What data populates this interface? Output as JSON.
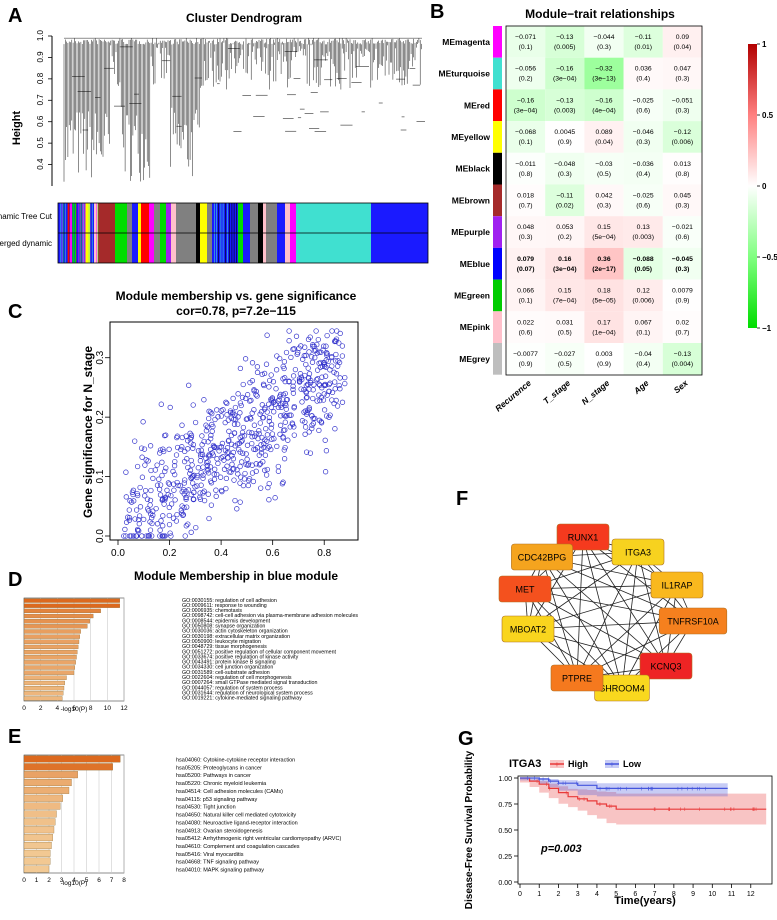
{
  "panels": {
    "A": "A",
    "B": "B",
    "C": "C",
    "D": "D",
    "E": "E",
    "F": "F",
    "G": "G"
  },
  "dendrogram": {
    "title": "Cluster Dendrogram",
    "ylabel": "Height",
    "yticks": [
      "0.4",
      "0.5",
      "0.6",
      "0.7",
      "0.8",
      "0.9",
      "1.0"
    ],
    "row1": "Dynamic Tree Cut",
    "row2": "Merged dynamic",
    "colors": [
      "#1a1aff",
      "#ff00ff",
      "#ffff00",
      "#00dd00",
      "#ff0000",
      "#a52a2a",
      "#000000",
      "#40e0d0",
      "#808080",
      "#ffc0cb",
      "#a020f0"
    ]
  },
  "heatmap": {
    "title": "Module−trait relationships",
    "traits": [
      "Recurence",
      "T_stage",
      "N_stage",
      "Age",
      "Sex"
    ],
    "modules": [
      "MEmagenta",
      "MEturquoise",
      "MEred",
      "MEyellow",
      "MEblack",
      "MEbrown",
      "MEpurple",
      "MEblue",
      "MEgreen",
      "MEpink",
      "MEgrey"
    ],
    "module_colors": [
      "#ff00ff",
      "#40e0d0",
      "#ff0000",
      "#ffff00",
      "#000000",
      "#a52a2a",
      "#a020f0",
      "#0000ff",
      "#00cd00",
      "#ffc0cb",
      "#bebebe"
    ],
    "cor": [
      [
        -0.071,
        -0.13,
        -0.044,
        -0.11,
        0.09
      ],
      [
        -0.056,
        -0.16,
        -0.32,
        0.036,
        0.047
      ],
      [
        -0.16,
        -0.13,
        -0.16,
        -0.025,
        -0.051
      ],
      [
        -0.068,
        0.0045,
        0.089,
        -0.046,
        -0.12
      ],
      [
        -0.011,
        -0.048,
        -0.03,
        -0.036,
        0.013
      ],
      [
        0.018,
        -0.11,
        0.042,
        -0.025,
        0.045
      ],
      [
        0.048,
        0.053,
        0.15,
        0.13,
        -0.021
      ],
      [
        0.079,
        0.16,
        0.36,
        -0.088,
        -0.045
      ],
      [
        0.066,
        0.15,
        0.18,
        0.12,
        0.0079
      ],
      [
        0.022,
        0.031,
        0.17,
        0.067,
        0.02
      ],
      [
        -0.0077,
        -0.027,
        0.003,
        -0.04,
        -0.13
      ]
    ],
    "labels": [
      [
        [
          "−0.071",
          "(0.1)"
        ],
        [
          "−0.13",
          "(0.005)"
        ],
        [
          "−0.044",
          "(0.3)"
        ],
        [
          "−0.11",
          "(0.01)"
        ],
        [
          "0.09",
          "(0.04)"
        ]
      ],
      [
        [
          "−0.056",
          "(0.2)"
        ],
        [
          "−0.16",
          "(3e−04)"
        ],
        [
          "−0.32",
          "(3e−13)"
        ],
        [
          "0.036",
          "(0.4)"
        ],
        [
          "0.047",
          "(0.3)"
        ]
      ],
      [
        [
          "−0.16",
          "(3e−04)"
        ],
        [
          "−0.13",
          "(0.003)"
        ],
        [
          "−0.16",
          "(4e−04)"
        ],
        [
          "−0.025",
          "(0.6)"
        ],
        [
          "−0.051",
          "(0.3)"
        ]
      ],
      [
        [
          "−0.068",
          "(0.1)"
        ],
        [
          "0.0045",
          "(0.9)"
        ],
        [
          "0.089",
          "(0.04)"
        ],
        [
          "−0.046",
          "(0.3)"
        ],
        [
          "−0.12",
          "(0.006)"
        ]
      ],
      [
        [
          "−0.011",
          "(0.8)"
        ],
        [
          "−0.048",
          "(0.3)"
        ],
        [
          "−0.03",
          "(0.5)"
        ],
        [
          "−0.036",
          "(0.4)"
        ],
        [
          "0.013",
          "(0.8)"
        ]
      ],
      [
        [
          "0.018",
          "(0.7)"
        ],
        [
          "−0.11",
          "(0.02)"
        ],
        [
          "0.042",
          "(0.3)"
        ],
        [
          "−0.025",
          "(0.6)"
        ],
        [
          "0.045",
          "(0.3)"
        ]
      ],
      [
        [
          "0.048",
          "(0.3)"
        ],
        [
          "0.053",
          "(0.2)"
        ],
        [
          "0.15",
          "(5e−04)"
        ],
        [
          "0.13",
          "(0.003)"
        ],
        [
          "−0.021",
          "(0.6)"
        ]
      ],
      [
        [
          "0.079",
          "(0.07)"
        ],
        [
          "0.16",
          "(3e−04)"
        ],
        [
          "0.36",
          "(2e−17)"
        ],
        [
          "−0.088",
          "(0.05)"
        ],
        [
          "−0.045",
          "(0.3)"
        ]
      ],
      [
        [
          "0.066",
          "(0.1)"
        ],
        [
          "0.15",
          "(7e−04)"
        ],
        [
          "0.18",
          "(5e−05)"
        ],
        [
          "0.12",
          "(0.006)"
        ],
        [
          "0.0079",
          "(0.9)"
        ]
      ],
      [
        [
          "0.022",
          "(0.6)"
        ],
        [
          "0.031",
          "(0.5)"
        ],
        [
          "0.17",
          "(1e−04)"
        ],
        [
          "0.067",
          "(0.1)"
        ],
        [
          "0.02",
          "(0.7)"
        ]
      ],
      [
        [
          "−0.0077",
          "(0.9)"
        ],
        [
          "−0.027",
          "(0.5)"
        ],
        [
          "0.003",
          "(0.9)"
        ],
        [
          "−0.04",
          "(0.4)"
        ],
        [
          "−0.13",
          "(0.004)"
        ]
      ]
    ],
    "bold_row": 7,
    "legend_ticks": [
      "1",
      "0.5",
      "0",
      "−0.5",
      "−1"
    ]
  },
  "scatter": {
    "title": "Module membership vs. gene significance",
    "subtitle": "cor=0.78, p=7.2e−115",
    "xlabel": "Module Membership in blue module",
    "ylabel": "Gene significance for  N_stage",
    "xticks": [
      "0.0",
      "0.2",
      "0.4",
      "0.6",
      "0.8"
    ],
    "yticks": [
      "0.0",
      "0.1",
      "0.2",
      "0.3"
    ],
    "n_points": 700,
    "cor": 0.78
  },
  "go": {
    "xlabel": "-log10(P)",
    "xticks": [
      "0",
      "2",
      "4",
      "6",
      "8",
      "10",
      "12"
    ],
    "terms": [
      {
        "label": "GO:0030155: regulation of cell adhesion",
        "value": 11.5
      },
      {
        "label": "GO:0009611: response to wounding",
        "value": 11.5
      },
      {
        "label": "GO:0006935: chemotaxis",
        "value": 9.2
      },
      {
        "label": "GO:0098742: cell-cell adhesion via plasma-membrane adhesion molecules",
        "value": 8.3
      },
      {
        "label": "GO:0008544: epidermis development",
        "value": 7.9
      },
      {
        "label": "GO:0050808: synapse organization",
        "value": 7.6
      },
      {
        "label": "GO:0030036: actin cytoskeleton organization",
        "value": 6.8
      },
      {
        "label": "GO:0030198: extracellular matrix organization",
        "value": 6.7
      },
      {
        "label": "GO:0050900: leukocyte migration",
        "value": 6.6
      },
      {
        "label": "GO:0048729: tissue morphogenesis",
        "value": 6.5
      },
      {
        "label": "GO:0051272: positive regulation of cellular component movement",
        "value": 6.4
      },
      {
        "label": "GO:0033674: positive regulation of kinase activity",
        "value": 6.3
      },
      {
        "label": "GO:0043491: protein kinase B signaling",
        "value": 6.2
      },
      {
        "label": "GO:0034330: cell junction organization",
        "value": 6.1
      },
      {
        "label": "GO:0031589: cell-substrate adhesion",
        "value": 6.0
      },
      {
        "label": "GO:0022604: regulation of cell morphogenesis",
        "value": 5.1
      },
      {
        "label": "GO:0007264: small GTPase mediated signal transduction",
        "value": 4.9
      },
      {
        "label": "GO:0044057: regulation of system process",
        "value": 4.8
      },
      {
        "label": "GO:0031644: regulation of neurological system process",
        "value": 4.7
      },
      {
        "label": "GO:0019221: cytokine-mediated signaling pathway",
        "value": 4.6
      }
    ]
  },
  "kegg": {
    "xlabel": "-log10(P)",
    "xticks": [
      "0",
      "1",
      "2",
      "3",
      "4",
      "5",
      "6",
      "7",
      "8"
    ],
    "terms": [
      {
        "label": "hsa04060: Cytokine-cytokine receptor interaction",
        "value": 7.7
      },
      {
        "label": "hsa05205: Proteoglycans in cancer",
        "value": 7.1
      },
      {
        "label": "hsa05200: Pathways in cancer",
        "value": 4.3
      },
      {
        "label": "hsa05220: Chronic myeloid leukemia",
        "value": 3.8
      },
      {
        "label": "hsa04514: Cell adhesion molecules (CAMs)",
        "value": 3.6
      },
      {
        "label": "hsa04115: p53 signaling pathway",
        "value": 3.1
      },
      {
        "label": "hsa04530: Tight junction",
        "value": 2.9
      },
      {
        "label": "hsa04650: Natural killer cell mediated cytotoxicity",
        "value": 2.6
      },
      {
        "label": "hsa04080: Neuroactive ligand-receptor interaction",
        "value": 2.5
      },
      {
        "label": "hsa04913: Ovarian steroidogenesis",
        "value": 2.4
      },
      {
        "label": "hsa05412: Arrhythmogenic right ventricular cardiomyopathy (ARVC)",
        "value": 2.3
      },
      {
        "label": "hsa04610: Complement and coagulation cascades",
        "value": 2.2
      },
      {
        "label": "hsa05416: Viral myocarditis",
        "value": 2.1
      },
      {
        "label": "hsa04668: TNF signaling pathway",
        "value": 2.1
      },
      {
        "label": "hsa04010: MAPK signaling pathway",
        "value": 2.0
      }
    ]
  },
  "network": {
    "nodes": [
      {
        "name": "RUNX1",
        "color": "#f53a1e"
      },
      {
        "name": "ITGA3",
        "color": "#f7d21f"
      },
      {
        "name": "IL1RAP",
        "color": "#f9b81e"
      },
      {
        "name": "TNFRSF10A",
        "color": "#f5801e"
      },
      {
        "name": "KCNQ3",
        "color": "#ee2424"
      },
      {
        "name": "SHROOM4",
        "color": "#f9d81e"
      },
      {
        "name": "PTPRE",
        "color": "#f5791e"
      },
      {
        "name": "MBOAT2",
        "color": "#f9d51e"
      },
      {
        "name": "MET",
        "color": "#f4511e"
      },
      {
        "name": "CDC42BPG",
        "color": "#f5a41e"
      }
    ]
  },
  "survival": {
    "title": "ITGA3",
    "legend": [
      {
        "name": "High",
        "color": "#e83a3a"
      },
      {
        "name": "Low",
        "color": "#4455dd"
      }
    ],
    "ylabel": "Disease-Free Survival Probability",
    "xlabel": "Time(years)",
    "yticks": [
      "0.00",
      "0.25",
      "0.50",
      "0.75",
      "1.00"
    ],
    "xticks": [
      "0",
      "1",
      "2",
      "3",
      "4",
      "5",
      "6",
      "7",
      "8",
      "9",
      "10",
      "11",
      "12"
    ],
    "pvalue": "p=0.003",
    "high": {
      "t": [
        0,
        0.5,
        1,
        1.5,
        2,
        2.5,
        3,
        3.5,
        4,
        4.5,
        5,
        12.8
      ],
      "s": [
        1.0,
        0.97,
        0.94,
        0.9,
        0.86,
        0.82,
        0.8,
        0.78,
        0.75,
        0.73,
        0.7,
        0.7
      ]
    },
    "low": {
      "t": [
        0,
        1,
        1.5,
        2,
        3,
        4,
        10.8
      ],
      "s": [
        1.0,
        0.99,
        0.97,
        0.95,
        0.93,
        0.9,
        0.9
      ]
    }
  }
}
